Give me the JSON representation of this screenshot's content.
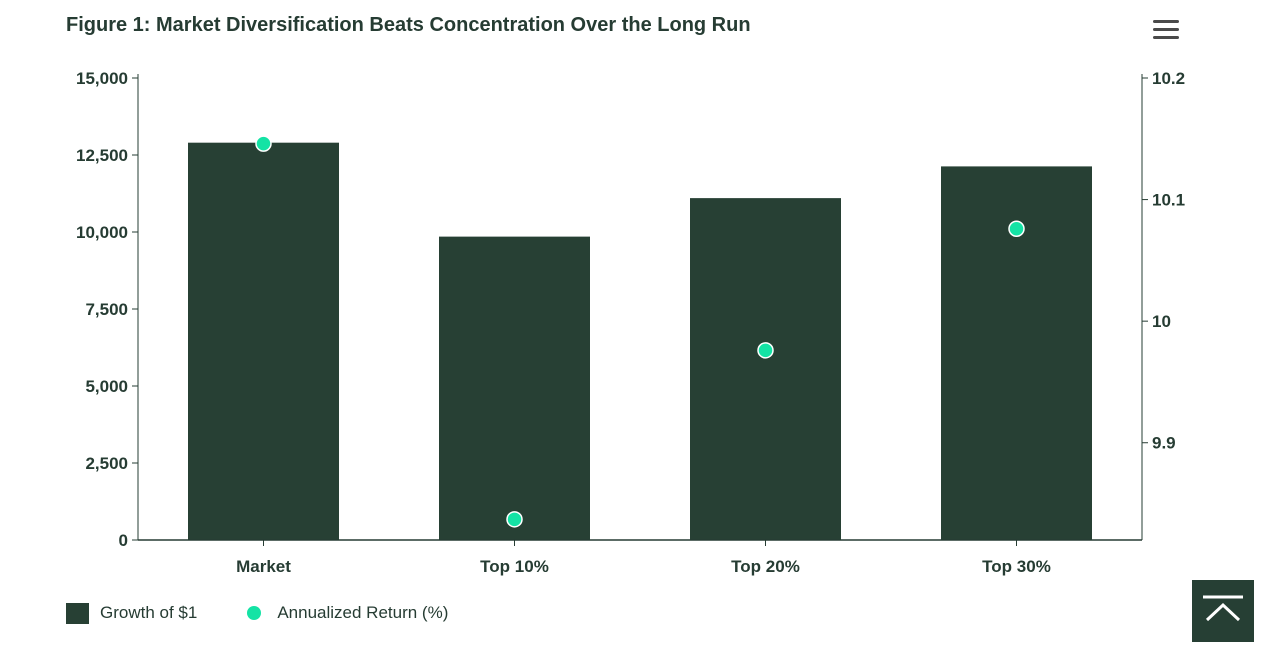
{
  "title": "Figure 1: Market Diversification Beats Concentration Over the Long Run",
  "menu_icon": "hamburger-menu-icon",
  "scroll_top_icon": "chevron-up-icon",
  "colors": {
    "bar": "#274034",
    "dot": "#14e3a5",
    "text": "#263c33",
    "axis": "#263c33"
  },
  "chart_data": {
    "type": "bar",
    "categories": [
      "Market",
      "Top 10%",
      "Top 20%",
      "Top 30%"
    ],
    "series": [
      {
        "name": "Growth of $1",
        "type": "bar",
        "axis": "left",
        "values": [
          12900,
          9850,
          11100,
          12130
        ]
      },
      {
        "name": "Annualized Return (%)",
        "type": "scatter",
        "axis": "right",
        "values": [
          10.146,
          9.837,
          9.976,
          10.076
        ]
      }
    ],
    "y_left": {
      "lim": [
        0,
        15000
      ],
      "ticks": [
        0,
        2500,
        5000,
        7500,
        10000,
        12500,
        15000
      ],
      "tick_labels": [
        "0",
        "2,500",
        "5,000",
        "7,500",
        "10,000",
        "12,500",
        "15,000"
      ]
    },
    "y_right": {
      "lim": [
        9.82,
        10.2
      ],
      "ticks": [
        9.9,
        10,
        10.1,
        10.2
      ],
      "tick_labels": [
        "9.9",
        "10",
        "10.1",
        "10.2"
      ]
    },
    "grid": false,
    "legend_position": "bottom-left"
  }
}
